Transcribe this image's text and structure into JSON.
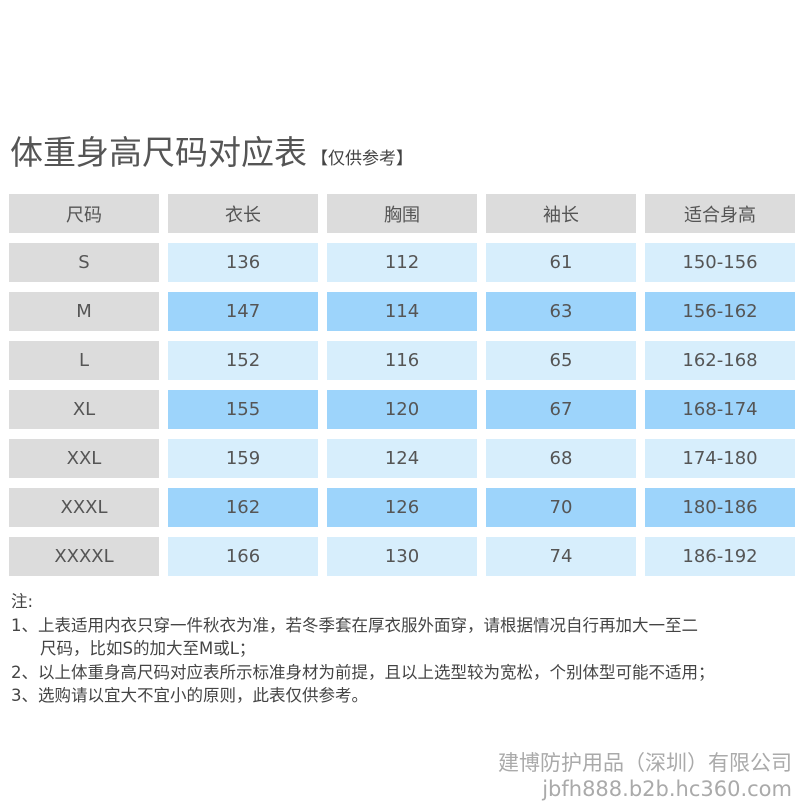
{
  "title": "体重身高尺码对应表",
  "subtitle": "【仅供参考】",
  "table": {
    "headers": [
      "尺码",
      "衣长",
      "胸围",
      "袖长",
      "适合身高"
    ],
    "rows": [
      [
        "S",
        "136",
        "112",
        "61",
        "150-156"
      ],
      [
        "M",
        "147",
        "114",
        "63",
        "156-162"
      ],
      [
        "L",
        "152",
        "116",
        "65",
        "162-168"
      ],
      [
        "XL",
        "155",
        "120",
        "67",
        "168-174"
      ],
      [
        "XXL",
        "159",
        "124",
        "68",
        "174-180"
      ],
      [
        "XXXL",
        "162",
        "126",
        "70",
        "180-186"
      ],
      [
        "XXXXL",
        "166",
        "130",
        "74",
        "186-192"
      ]
    ]
  },
  "colors": {
    "header": "#dcdcdc",
    "row_light": "#d7eefc",
    "row_dark": "#9dd4fb"
  },
  "notes": {
    "label": "注:",
    "line1": "1、上表适用内衣只穿一件秋衣为准，若冬季套在厚衣服外面穿，请根据情况自行再加大一至二",
    "line1b": "尺码，比如S的加大至M或L；",
    "line2": "2、以上体重身高尺码对应表所示标准身材为前提，且以上选型较为宽松，个别体型可能不适用；",
    "line3": "3、选购请以宜大不宜小的原则，此表仅供参考。"
  },
  "footer": {
    "company": "建博防护用品（深圳）有限公司",
    "url": "jbfh888.b2b.hc360.com"
  }
}
